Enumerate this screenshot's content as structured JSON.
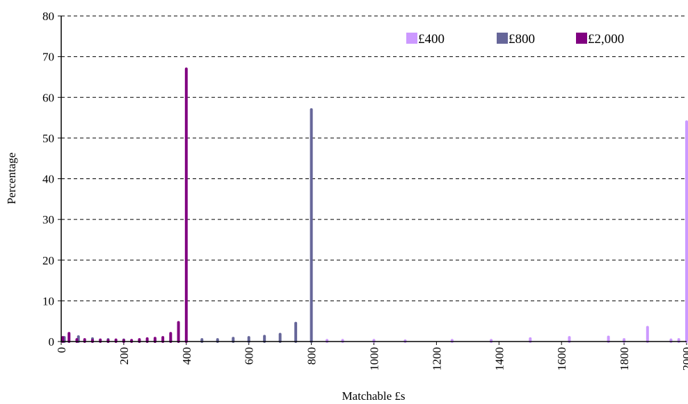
{
  "chart_data": {
    "type": "bar",
    "ylabel": "Percentage",
    "xlabel": "Matchable £s",
    "xlim": [
      0,
      2000
    ],
    "xticks": [
      0,
      200,
      400,
      600,
      800,
      1000,
      1200,
      1400,
      1600,
      1800,
      2000
    ],
    "ylim": [
      0,
      80
    ],
    "yticks": [
      0,
      10,
      20,
      30,
      40,
      50,
      60,
      70,
      80
    ],
    "grid": true,
    "legend": "top-right",
    "series": [
      {
        "name": "£400",
        "color": "#cc99ff",
        "x": [
          850,
          900,
          1000,
          1100,
          1250,
          1375,
          1500,
          1625,
          1750,
          1800,
          1875,
          1950,
          1975,
          2000
        ],
        "values": [
          0.3,
          0.3,
          0.3,
          0.2,
          0.3,
          0.3,
          0.7,
          1.0,
          1.1,
          0.5,
          3.5,
          0.4,
          0.5,
          54
        ]
      },
      {
        "name": "£800",
        "color": "#666699",
        "x": [
          10,
          55,
          100,
          150,
          200,
          250,
          300,
          350,
          400,
          450,
          500,
          550,
          600,
          650,
          700,
          750,
          800
        ],
        "values": [
          1.0,
          1.2,
          0.7,
          0.5,
          0.4,
          0.3,
          0.3,
          0.3,
          0.3,
          0.5,
          0.5,
          0.8,
          1.0,
          1.3,
          1.8,
          4.5,
          57
        ]
      },
      {
        "name": "£2,000",
        "color": "#800080",
        "x": [
          5,
          25,
          50,
          75,
          100,
          125,
          150,
          175,
          200,
          225,
          250,
          275,
          300,
          325,
          350,
          375,
          400
        ],
        "values": [
          1.0,
          2.0,
          0.5,
          0.5,
          0.3,
          0.4,
          0.3,
          0.4,
          0.3,
          0.3,
          0.5,
          0.7,
          0.8,
          1.0,
          2.0,
          4.7,
          67
        ]
      }
    ]
  }
}
